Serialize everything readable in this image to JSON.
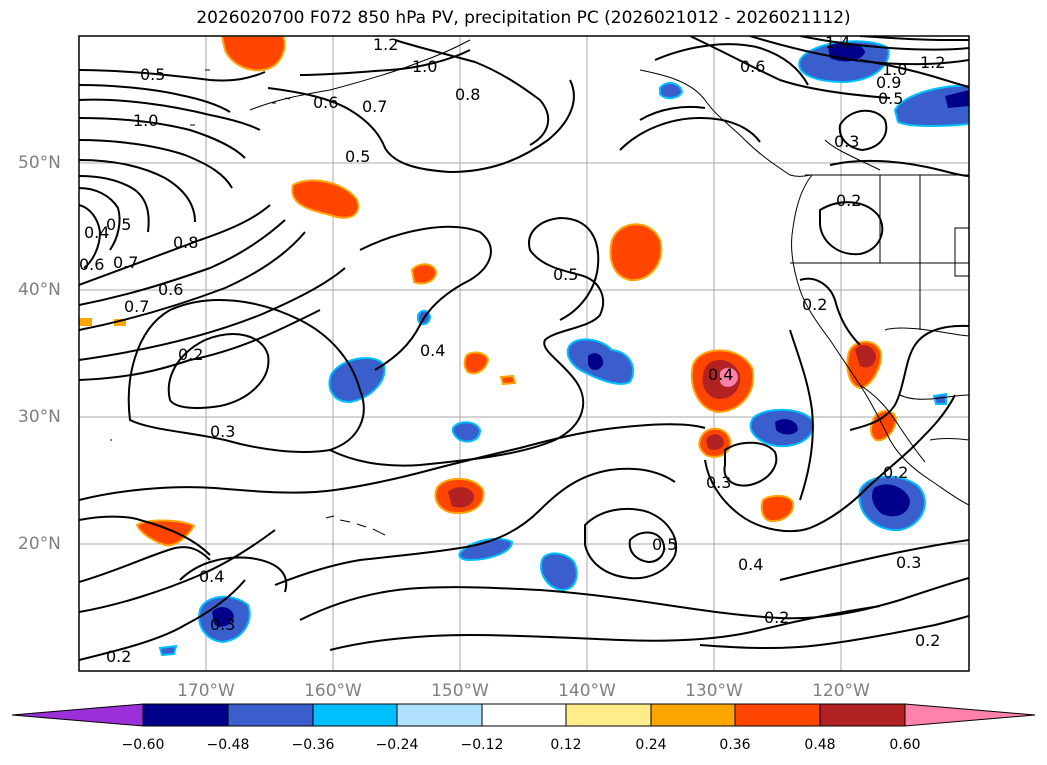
{
  "title": "2026020700 F072 850 hPa PV, precipitation PC (2026021012 - 2026021112)",
  "axes": {
    "lat_labels": [
      "50°N",
      "40°N",
      "30°N",
      "20°N"
    ],
    "lon_labels": [
      "170°W",
      "160°W",
      "150°W",
      "140°W",
      "130°W",
      "120°W"
    ]
  },
  "colorbar": {
    "tick_labels": [
      "−0.60",
      "−0.48",
      "−0.36",
      "−0.24",
      "−0.12",
      "0.12",
      "0.24",
      "0.36",
      "0.48",
      "0.60"
    ],
    "colors": [
      "#9b30d9",
      "#00008b",
      "#3a5fcd",
      "#00bfff",
      "#b0e2ff",
      "#ffffff",
      "#ffec8b",
      "#ffa500",
      "#ff4500",
      "#b22222",
      "#ff82ab"
    ]
  },
  "contour_labels": [
    "1.2",
    "1.0",
    "0.8",
    "0.5",
    "0.7",
    "1.0",
    "0.5",
    "0.4",
    "0.5",
    "0.6",
    "0.7",
    "0.8",
    "0.7",
    "0.6",
    "0.2",
    "0.3",
    "0.4",
    "0.5",
    "0.4",
    "0.6",
    "0.3",
    "0.2",
    "0.4",
    "0.3",
    "0.5",
    "0.4",
    "0.3",
    "0.2",
    "0.2",
    "1.4",
    "1.2",
    "1.0",
    "0.9",
    "0.5",
    "0.6",
    "0.3",
    "0.2",
    "0.2",
    "0.2"
  ]
}
